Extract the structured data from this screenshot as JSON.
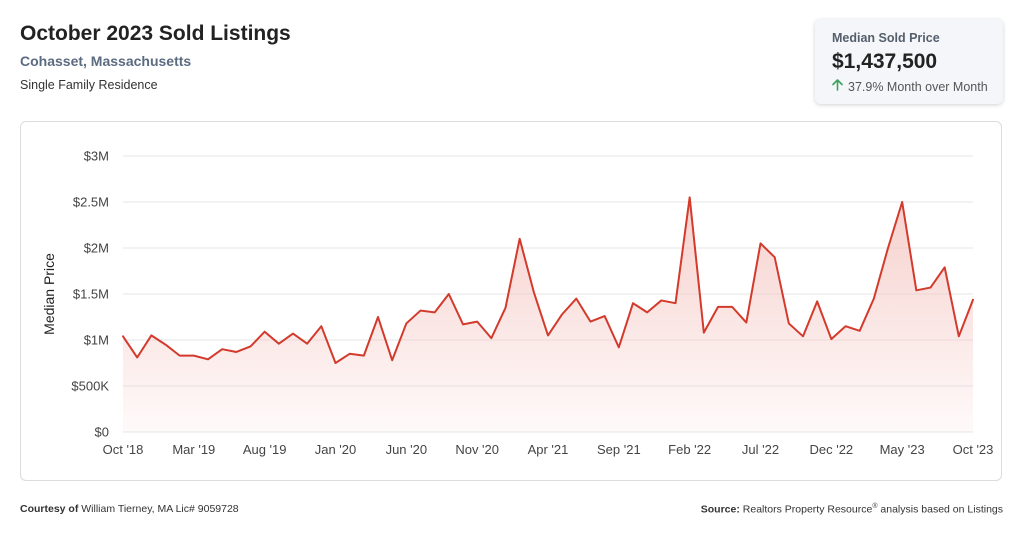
{
  "header": {
    "title": "October 2023 Sold Listings",
    "location": "Cohasset, Massachusetts",
    "property_type": "Single Family Residence"
  },
  "summary_card": {
    "label": "Median Sold Price",
    "value": "$1,437,500",
    "change": "37.9% Month over Month",
    "change_direction": "up",
    "up_color": "#3aa35b"
  },
  "footer": {
    "courtesy_prefix": "Courtesy of",
    "courtesy_text": "William Tierney, MA Lic# 9059728",
    "source_prefix": "Source:",
    "source_text": "Realtors Property Resource",
    "source_mark": "®",
    "source_suffix": " analysis based on Listings"
  },
  "chart_data": {
    "type": "area",
    "ylabel": "Median Price",
    "xlabel": "",
    "ylim": [
      0,
      3000000
    ],
    "y_ticks": [
      {
        "value": 0,
        "label": "$0"
      },
      {
        "value": 500000,
        "label": "$500K"
      },
      {
        "value": 1000000,
        "label": "$1M"
      },
      {
        "value": 1500000,
        "label": "$1.5M"
      },
      {
        "value": 2000000,
        "label": "$2M"
      },
      {
        "value": 2500000,
        "label": "$2.5M"
      },
      {
        "value": 3000000,
        "label": "$3M"
      }
    ],
    "x_tick_labels": [
      {
        "index": 0,
        "label": "Oct '18"
      },
      {
        "index": 5,
        "label": "Mar '19"
      },
      {
        "index": 10,
        "label": "Aug '19"
      },
      {
        "index": 15,
        "label": "Jan '20"
      },
      {
        "index": 20,
        "label": "Jun '20"
      },
      {
        "index": 25,
        "label": "Nov '20"
      },
      {
        "index": 30,
        "label": "Apr '21"
      },
      {
        "index": 35,
        "label": "Sep '21"
      },
      {
        "index": 40,
        "label": "Feb '22"
      },
      {
        "index": 45,
        "label": "Jul '22"
      },
      {
        "index": 50,
        "label": "Dec '22"
      },
      {
        "index": 55,
        "label": "May '23"
      },
      {
        "index": 60,
        "label": "Oct '23"
      }
    ],
    "grid": true,
    "line_color": "#d33a2c",
    "fill_color": "#f3c1bc",
    "series": [
      {
        "values": [
          1040000,
          810000,
          1050000,
          950000,
          830000,
          830000,
          790000,
          900000,
          870000,
          930000,
          1090000,
          960000,
          1070000,
          960000,
          1150000,
          750000,
          850000,
          830000,
          1250000,
          780000,
          1180000,
          1320000,
          1300000,
          1500000,
          1170000,
          1200000,
          1020000,
          1350000,
          2100000,
          1520000,
          1050000,
          1280000,
          1450000,
          1200000,
          1260000,
          920000,
          1400000,
          1300000,
          1430000,
          1400000,
          2550000,
          1080000,
          1360000,
          1360000,
          1190000,
          2050000,
          1900000,
          1180000,
          1040000,
          1420000,
          1010000,
          1150000,
          1100000,
          1450000,
          2000000,
          2500000,
          1540000,
          1570000,
          1790000,
          1040000,
          1437500
        ]
      }
    ]
  }
}
